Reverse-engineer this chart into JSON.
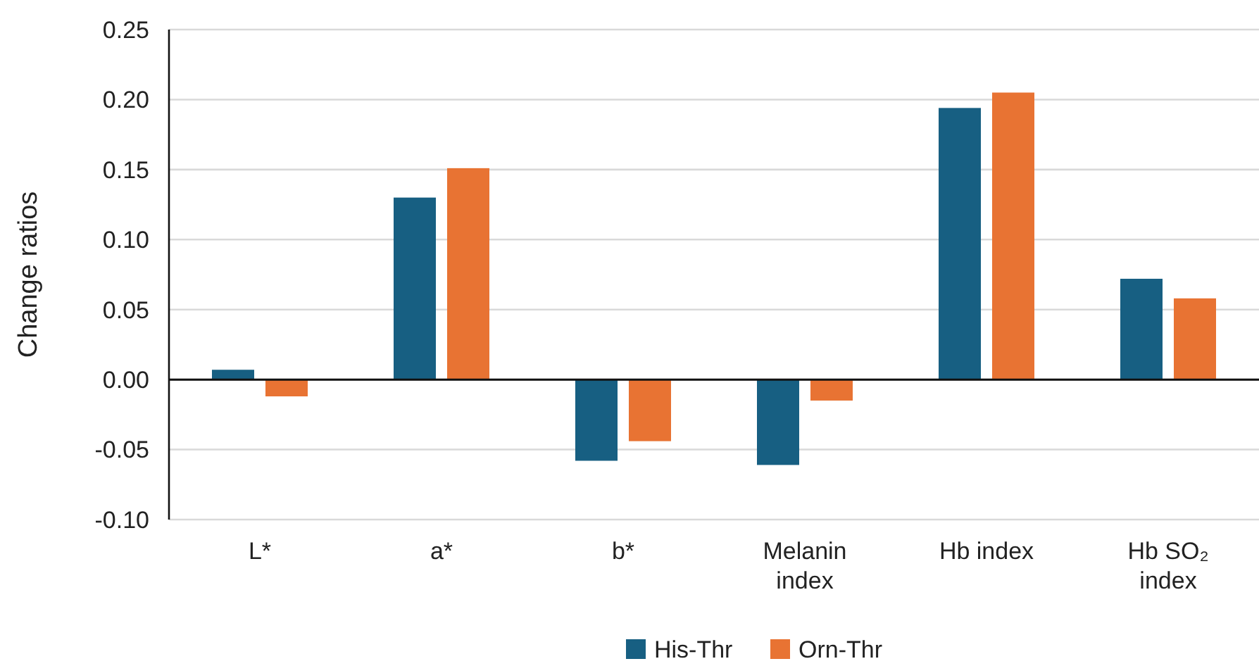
{
  "chart_data": {
    "type": "bar",
    "ylabel": "Change ratios",
    "categories": [
      "L*",
      "a*",
      "b*",
      "Melanin index",
      "Hb index",
      "Hb SO₂ index"
    ],
    "series": [
      {
        "name": "His-Thr",
        "color": "#175f82",
        "values": [
          0.007,
          0.13,
          -0.058,
          -0.061,
          0.194,
          0.072
        ]
      },
      {
        "name": "Orn-Thr",
        "color": "#e87333",
        "values": [
          -0.012,
          0.151,
          -0.044,
          -0.015,
          0.205,
          0.058
        ]
      }
    ],
    "ylim": [
      -0.1,
      0.25
    ],
    "yticks": [
      {
        "value": -0.1,
        "label": "-0.10"
      },
      -0.05,
      {
        "value": 0,
        "label": "0.00"
      },
      0.05,
      {
        "value": 0.1,
        "label": "0.10"
      },
      0.15,
      {
        "value": 0.2,
        "label": "0.20"
      },
      0.25
    ],
    "grid": "y",
    "legend": "bottom"
  }
}
